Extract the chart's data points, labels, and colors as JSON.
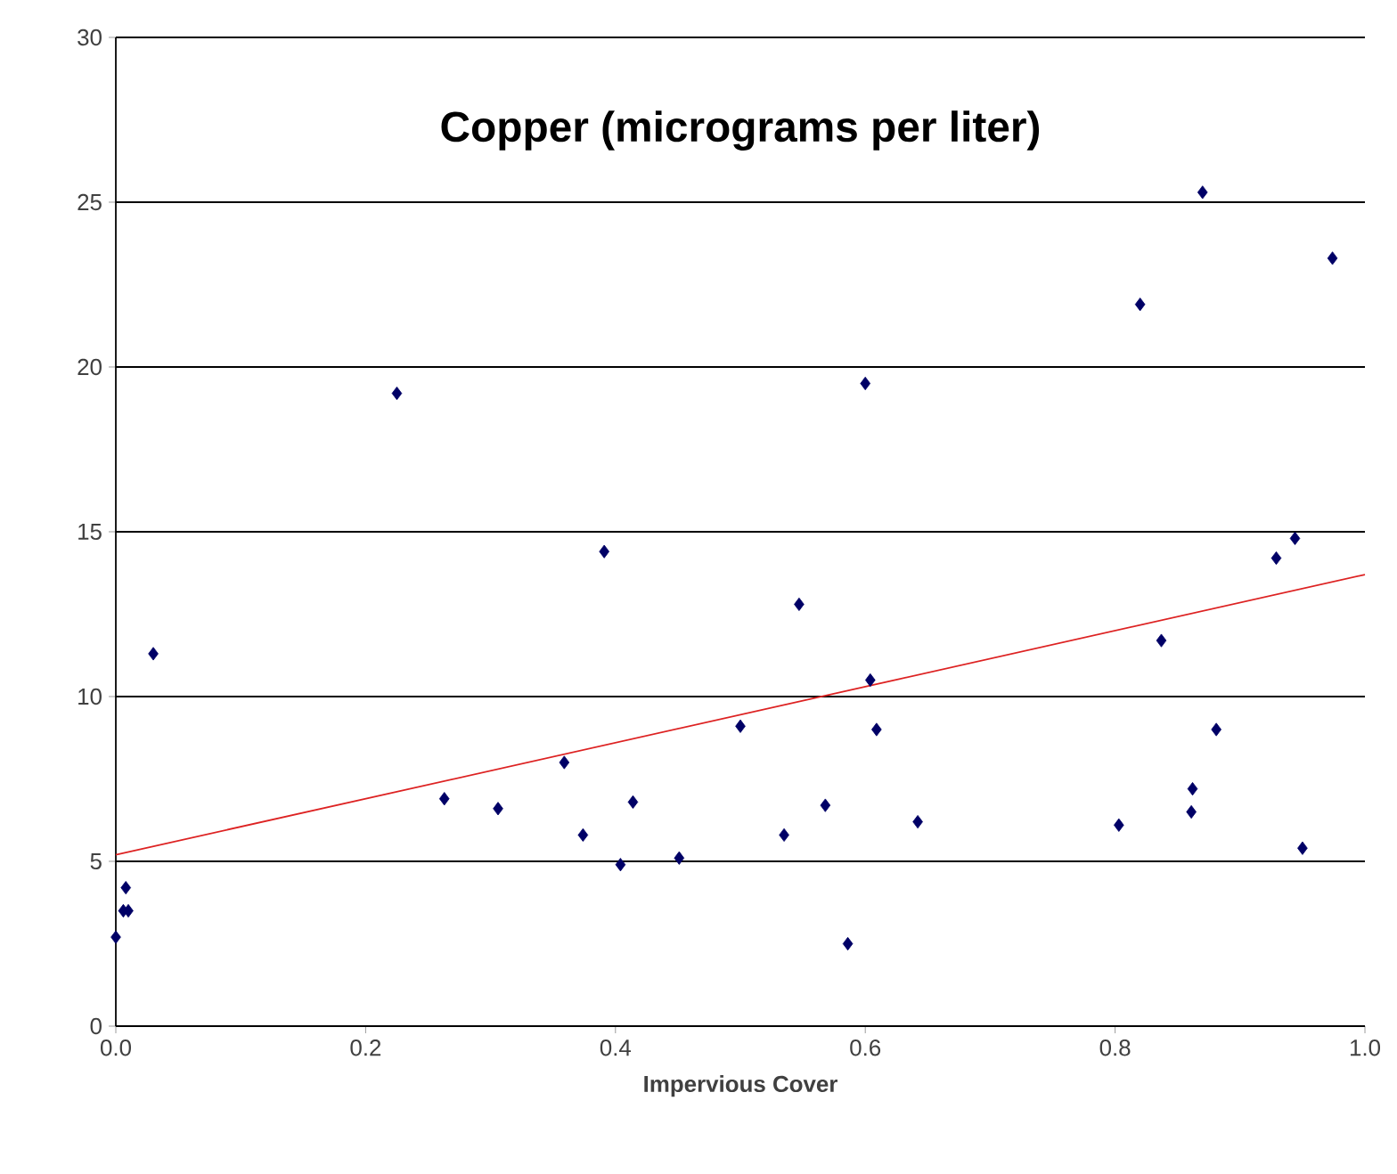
{
  "chart_data": {
    "type": "scatter",
    "title": "Copper (micrograms per liter)",
    "xlabel": "Impervious Cover",
    "xlim": [
      0,
      1
    ],
    "xticks": [
      {
        "value": 0,
        "label": "0.0"
      },
      {
        "value": 0.2,
        "label": "0.2"
      },
      {
        "value": 0.4,
        "label": "0.4"
      },
      {
        "value": 0.6,
        "label": "0.6"
      },
      {
        "value": 0.8,
        "label": "0.8"
      },
      {
        "value": 1,
        "label": "1.0"
      }
    ],
    "ylim": [
      0,
      30
    ],
    "yticks": [
      0,
      5,
      10,
      15,
      20,
      25,
      30
    ],
    "grid": "y",
    "marker": "diamond",
    "series": [
      {
        "color": "#000066",
        "x": [
          0.225,
          0.391,
          0.6,
          0.82,
          0.87,
          0.974,
          0.929,
          0.944,
          0.03,
          0.547,
          0.837,
          0.604,
          0.5,
          0.609,
          0.881,
          0.359,
          0.263,
          0.306,
          0.414,
          0.374,
          0.404,
          0.451,
          0.535,
          0.568,
          0.642,
          0.586,
          0.803,
          0.862,
          0.861,
          0.95,
          0.008,
          0.01,
          0.006,
          0.0
        ],
        "values": [
          19.2,
          14.4,
          19.5,
          21.9,
          25.3,
          23.3,
          14.2,
          14.8,
          11.3,
          12.8,
          11.7,
          10.5,
          9.1,
          9.0,
          9.0,
          8.0,
          6.9,
          6.6,
          6.8,
          5.8,
          4.9,
          5.1,
          5.8,
          6.7,
          6.2,
          2.5,
          6.1,
          7.2,
          6.5,
          5.4,
          4.2,
          3.5,
          3.5,
          2.7
        ]
      },
      {
        "type": "line",
        "color": "#dd2222",
        "marker": "none",
        "x": [
          0,
          1
        ],
        "values": [
          5.2,
          13.7
        ]
      }
    ]
  }
}
